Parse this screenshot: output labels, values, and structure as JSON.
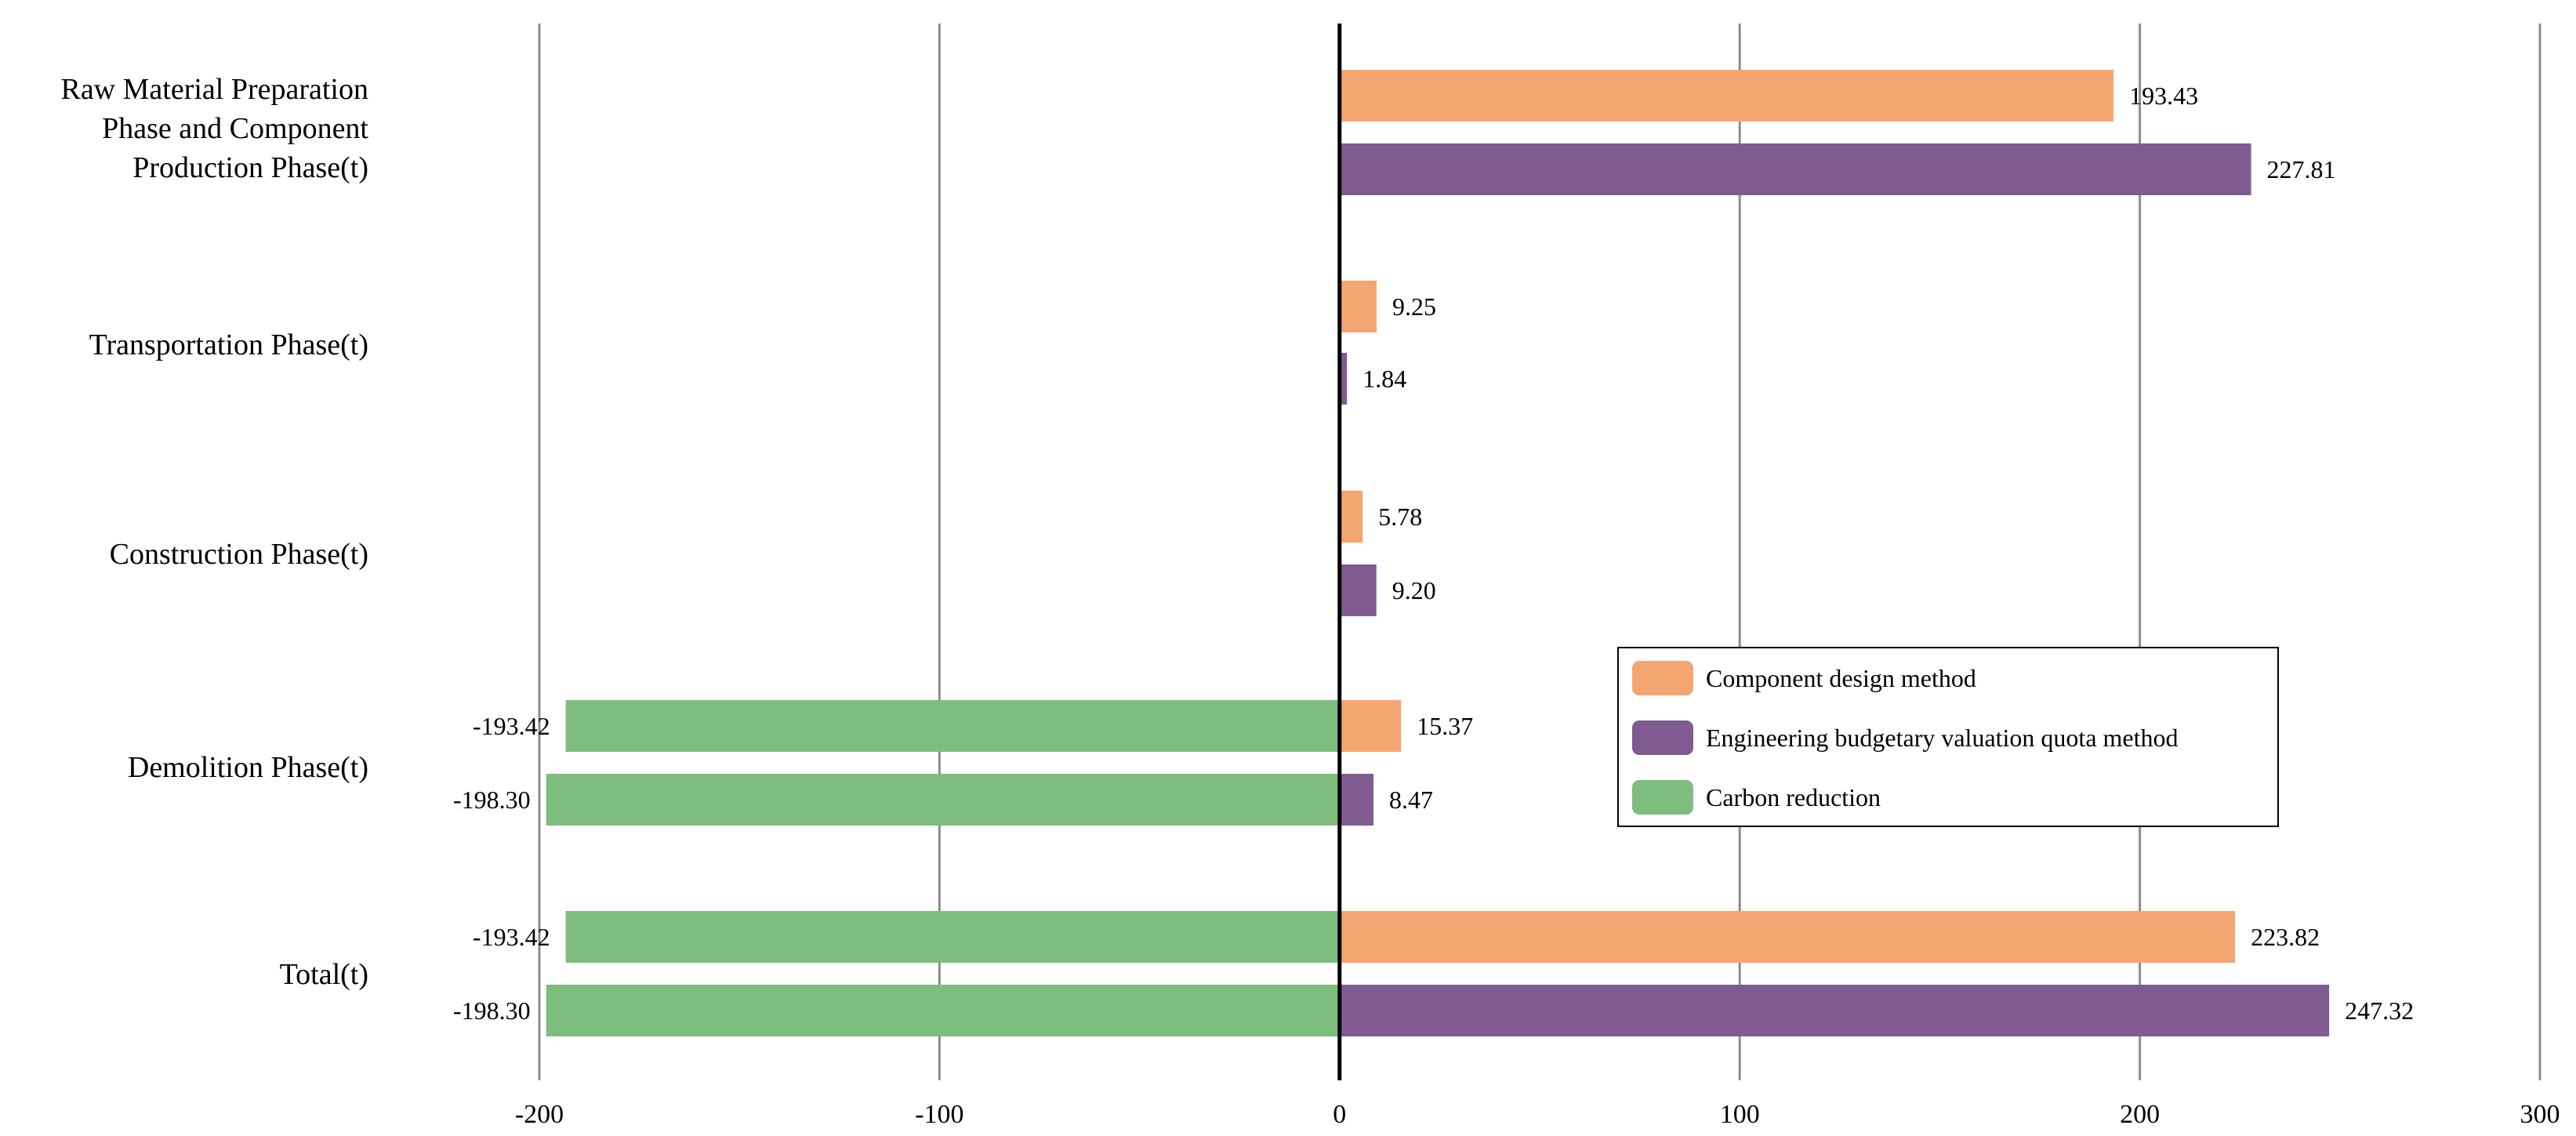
{
  "chart_data": {
    "type": "bar",
    "orientation": "horizontal",
    "categories": [
      [
        "Raw Material Preparation",
        "Phase and Component",
        "Production Phase(t)"
      ],
      [
        "Transportation Phase(t)"
      ],
      [
        "Construction Phase(t)"
      ],
      [
        "Demolition Phase(t)"
      ],
      [
        "Total(t)"
      ]
    ],
    "series": [
      {
        "name": "Component design method",
        "color": "#F4A672",
        "values": [
          193.43,
          9.25,
          5.78,
          15.37,
          223.82
        ],
        "labels": [
          "193.43",
          "9.25",
          "5.78",
          "15.37",
          "223.82"
        ]
      },
      {
        "name": "Engineering budgetary valuation quota method",
        "color": "#7F5B92",
        "values": [
          227.81,
          1.84,
          9.2,
          8.47,
          247.32
        ],
        "labels": [
          "227.81",
          "1.84",
          "9.20",
          "8.47",
          "247.32"
        ]
      },
      {
        "name": "Carbon reduction",
        "color": "#7DBD7D",
        "values": [
          null,
          null,
          null,
          [
            -193.42,
            -198.3
          ],
          [
            -193.42,
            -198.3
          ]
        ],
        "labels": [
          null,
          null,
          null,
          [
            "-193.42",
            "-198.30"
          ],
          [
            "-193.42",
            "-198.30"
          ]
        ]
      }
    ],
    "xlim": [
      -200,
      300
    ],
    "xticks": [
      -200,
      -100,
      0,
      100,
      200,
      300
    ],
    "xtick_labels": [
      "-200",
      "-100",
      "0",
      "100",
      "200",
      "300"
    ],
    "grid": "vertical",
    "legend_position": "lower-right",
    "title": "",
    "xlabel": "",
    "ylabel": ""
  }
}
